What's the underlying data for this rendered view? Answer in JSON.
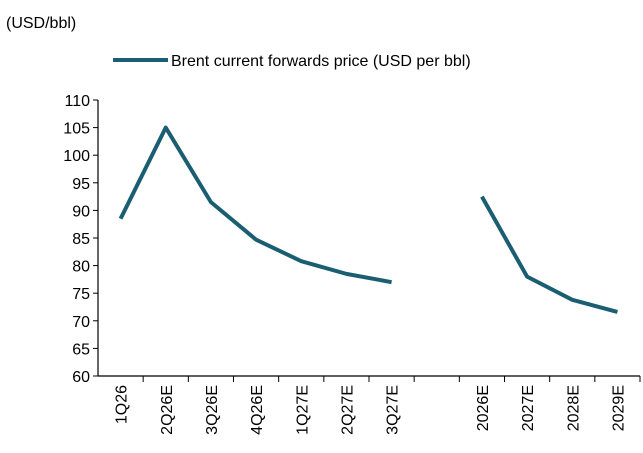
{
  "chart_data": {
    "type": "line",
    "y_axis_label": "(USD/bbl)",
    "categories": [
      "1Q26",
      "2Q26E",
      "3Q26E",
      "4Q26E",
      "1Q27E",
      "2Q27E",
      "3Q27E",
      null,
      "2026E",
      "2027E",
      "2028E",
      "2029E"
    ],
    "series": [
      {
        "name": "Brent current forwards price (USD per bbl)",
        "color": "#1b5e72",
        "values": [
          88.5,
          105,
          91.5,
          84.7,
          80.8,
          78.5,
          77,
          null,
          92.5,
          78,
          73.8,
          71.6
        ]
      }
    ],
    "ylim": [
      60,
      110
    ],
    "yticks": [
      60,
      65,
      70,
      75,
      80,
      85,
      90,
      95,
      100,
      105,
      110
    ],
    "grid": false,
    "legend": "top"
  }
}
